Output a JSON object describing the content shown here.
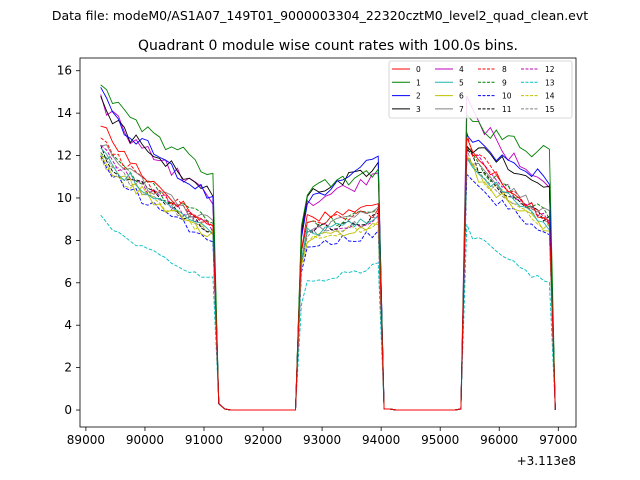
{
  "suptitle": "Data file: modeM0/AS1A07_149T01_9000003304_22320cztM0_level2_quad_clean.evt",
  "chart_data": {
    "type": "line",
    "title": "Quadrant 0 module wise count rates with 100.0s bins.",
    "xlabel": "",
    "ylabel": "",
    "x_offset_label": "+3.113e8",
    "xlim": [
      88900,
      97300
    ],
    "ylim": [
      -0.8,
      16.6
    ],
    "x_ticks": [
      89000,
      90000,
      91000,
      92000,
      93000,
      94000,
      95000,
      96000,
      97000
    ],
    "x_tick_labels": [
      "89000",
      "90000",
      "91000",
      "92000",
      "93000",
      "94000",
      "95000",
      "96000",
      "97000"
    ],
    "y_ticks": [
      0,
      2,
      4,
      6,
      8,
      10,
      12,
      14,
      16
    ],
    "y_tick_labels": [
      "0",
      "2",
      "4",
      "6",
      "8",
      "10",
      "12",
      "14",
      "16"
    ],
    "bin_size_s": 100,
    "segments": [
      {
        "start": 89250,
        "end": 91150
      },
      {
        "start": 92600,
        "end": 93950
      },
      {
        "start": 95450,
        "end": 96900
      }
    ],
    "gap_points": [
      91150,
      91250,
      91350,
      92500,
      92600,
      93950,
      94050,
      94150,
      95350,
      95450,
      96900,
      97000
    ],
    "legend_position": "upper-right",
    "legend_columns": 4,
    "series": [
      {
        "name": "0",
        "color": "#ff0000",
        "dash": "solid",
        "seg_start": [
          13.6,
          9.0,
          13.0
        ],
        "seg_end": [
          8.6,
          9.6,
          8.8
        ]
      },
      {
        "name": "1",
        "color": "#008000",
        "dash": "solid",
        "seg_start": [
          15.7,
          10.3,
          13.6
        ],
        "seg_end": [
          11.1,
          11.2,
          12.0
        ]
      },
      {
        "name": "2",
        "color": "#0000ff",
        "dash": "solid",
        "seg_start": [
          14.8,
          9.6,
          13.0
        ],
        "seg_end": [
          10.1,
          11.8,
          10.8
        ]
      },
      {
        "name": "3",
        "color": "#000000",
        "dash": "solid",
        "seg_start": [
          14.5,
          9.9,
          12.8
        ],
        "seg_end": [
          10.2,
          11.5,
          10.5
        ]
      },
      {
        "name": "4",
        "color": "#bf00bf",
        "dash": "solid",
        "seg_start": [
          14.7,
          9.6,
          14.7
        ],
        "seg_end": [
          9.9,
          11.0,
          10.2
        ]
      },
      {
        "name": "5",
        "color": "#20b2aa",
        "dash": "solid",
        "seg_start": [
          12.3,
          8.3,
          12.1
        ],
        "seg_end": [
          8.5,
          9.0,
          8.6
        ]
      },
      {
        "name": "6",
        "color": "#bfbf00",
        "dash": "solid",
        "seg_start": [
          12.1,
          8.0,
          11.8
        ],
        "seg_end": [
          8.2,
          8.6,
          8.4
        ]
      },
      {
        "name": "7",
        "color": "#808080",
        "dash": "solid",
        "seg_start": [
          12.6,
          8.3,
          12.0
        ],
        "seg_end": [
          8.8,
          9.4,
          9.2
        ]
      },
      {
        "name": "8",
        "color": "#ff0000",
        "dash": "dashed",
        "seg_start": [
          13.1,
          8.7,
          12.8
        ],
        "seg_end": [
          8.6,
          9.3,
          8.9
        ]
      },
      {
        "name": "9",
        "color": "#008000",
        "dash": "dashed",
        "seg_start": [
          12.5,
          8.6,
          12.4
        ],
        "seg_end": [
          8.8,
          9.3,
          9.0
        ]
      },
      {
        "name": "10",
        "color": "#0000ff",
        "dash": "dashed",
        "seg_start": [
          11.7,
          7.8,
          11.4
        ],
        "seg_end": [
          8.0,
          8.3,
          8.1
        ]
      },
      {
        "name": "11",
        "color": "#000000",
        "dash": "dashed",
        "seg_start": [
          12.3,
          8.4,
          12.2
        ],
        "seg_end": [
          8.5,
          9.1,
          8.8
        ]
      },
      {
        "name": "12",
        "color": "#bf00bf",
        "dash": "dashed",
        "seg_start": [
          12.4,
          8.4,
          12.5
        ],
        "seg_end": [
          8.6,
          9.0,
          8.8
        ]
      },
      {
        "name": "13",
        "color": "#00bfbf",
        "dash": "dashed",
        "seg_start": [
          9.2,
          5.9,
          8.6
        ],
        "seg_end": [
          6.1,
          6.8,
          5.9
        ]
      },
      {
        "name": "14",
        "color": "#bfbf00",
        "dash": "dashed",
        "seg_start": [
          12.0,
          8.0,
          11.9
        ],
        "seg_end": [
          8.3,
          8.7,
          8.5
        ]
      },
      {
        "name": "15",
        "color": "#808080",
        "dash": "dashed",
        "seg_start": [
          12.2,
          8.2,
          12.0
        ],
        "seg_end": [
          8.4,
          8.9,
          8.7
        ]
      }
    ]
  }
}
